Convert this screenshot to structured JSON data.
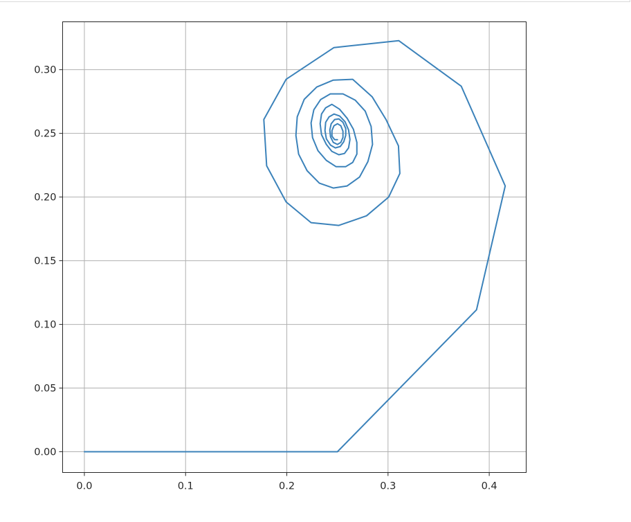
{
  "chart_data": {
    "type": "line",
    "title": "",
    "xlabel": "",
    "ylabel": "",
    "xlim": [
      -0.0215,
      0.4365
    ],
    "ylim": [
      -0.0163,
      0.3376
    ],
    "grid": true,
    "line_color": "#3b82ba",
    "x_ticks": [
      0.0,
      0.1,
      0.2,
      0.3,
      0.4
    ],
    "x_tick_labels": [
      "0.0",
      "0.1",
      "0.2",
      "0.3",
      "0.4"
    ],
    "y_ticks": [
      0.0,
      0.05,
      0.1,
      0.15,
      0.2,
      0.25,
      0.3
    ],
    "y_tick_labels": [
      "0.00",
      "0.05",
      "0.10",
      "0.15",
      "0.20",
      "0.25",
      "0.30"
    ],
    "series": [
      {
        "x": [
          0.0,
          0.25,
          0.3874,
          0.4158,
          0.3724,
          0.3106,
          0.2466,
          0.1993,
          0.1773,
          0.1801,
          0.1993,
          0.224,
          0.2514,
          0.2788,
          0.3007,
          0.3117,
          0.3103,
          0.298,
          0.2843,
          0.2651,
          0.2459,
          0.2296,
          0.2172,
          0.2103,
          0.209,
          0.2117,
          0.22,
          0.2322,
          0.2459,
          0.2596,
          0.2719,
          0.2801,
          0.2847,
          0.2833,
          0.2775,
          0.2675,
          0.2555,
          0.243,
          0.2335,
          0.2267,
          0.224,
          0.2254,
          0.2308,
          0.239,
          0.2486,
          0.2582,
          0.2651,
          0.2692,
          0.2692,
          0.2658,
          0.2596,
          0.2521,
          0.2445,
          0.2384,
          0.2343,
          0.2329,
          0.2343,
          0.239,
          0.2445,
          0.2514,
          0.257,
          0.261,
          0.2624,
          0.261,
          0.2575,
          0.2522,
          0.2466,
          0.2418,
          0.2384,
          0.2377,
          0.2391,
          0.2432,
          0.248,
          0.2528,
          0.2563,
          0.2582,
          0.2582,
          0.2555,
          0.2514,
          0.2473,
          0.2439,
          0.2425,
          0.2432,
          0.2459,
          0.25,
          0.2534,
          0.2555,
          0.2555,
          0.2534,
          0.25,
          0.2466,
          0.2446,
          0.2446,
          0.2473,
          0.25
        ],
        "y": [
          0.0,
          0.0,
          0.1114,
          0.2087,
          0.287,
          0.3228,
          0.3174,
          0.2924,
          0.2609,
          0.2245,
          0.1962,
          0.1799,
          0.1777,
          0.1853,
          0.2,
          0.2185,
          0.2402,
          0.2609,
          0.2788,
          0.2924,
          0.2918,
          0.2864,
          0.2767,
          0.263,
          0.2484,
          0.2337,
          0.2207,
          0.2109,
          0.2071,
          0.2087,
          0.2157,
          0.2278,
          0.2413,
          0.2554,
          0.2674,
          0.2761,
          0.281,
          0.281,
          0.2766,
          0.2685,
          0.2582,
          0.2467,
          0.2364,
          0.2288,
          0.2239,
          0.2239,
          0.2272,
          0.2337,
          0.2429,
          0.2532,
          0.2619,
          0.269,
          0.2728,
          0.2701,
          0.2652,
          0.2576,
          0.249,
          0.2414,
          0.2359,
          0.2332,
          0.2342,
          0.2386,
          0.2452,
          0.2527,
          0.2592,
          0.2636,
          0.2652,
          0.263,
          0.2587,
          0.2522,
          0.2457,
          0.2408,
          0.2386,
          0.2397,
          0.2435,
          0.2484,
          0.2538,
          0.2587,
          0.2614,
          0.2609,
          0.2576,
          0.2527,
          0.2473,
          0.2429,
          0.2413,
          0.2429,
          0.2468,
          0.2517,
          0.256,
          0.2576,
          0.256,
          0.2522,
          0.2478,
          0.2451,
          0.245
        ]
      }
    ]
  }
}
